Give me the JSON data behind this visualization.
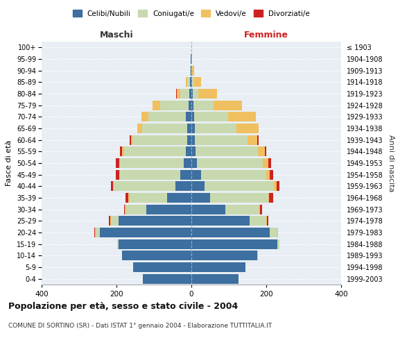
{
  "age_groups": [
    "0-4",
    "5-9",
    "10-14",
    "15-19",
    "20-24",
    "25-29",
    "30-34",
    "35-39",
    "40-44",
    "45-49",
    "50-54",
    "55-59",
    "60-64",
    "65-69",
    "70-74",
    "75-79",
    "80-84",
    "85-89",
    "90-94",
    "95-99",
    "100+"
  ],
  "birth_years": [
    "1999-2003",
    "1994-1998",
    "1989-1993",
    "1984-1988",
    "1979-1983",
    "1974-1978",
    "1969-1973",
    "1964-1968",
    "1959-1963",
    "1954-1958",
    "1949-1953",
    "1944-1948",
    "1939-1943",
    "1934-1938",
    "1929-1933",
    "1924-1928",
    "1919-1923",
    "1914-1918",
    "1909-1913",
    "1904-1908",
    "≤ 1903"
  ],
  "males": {
    "celibe": [
      130,
      155,
      185,
      195,
      245,
      195,
      120,
      65,
      42,
      30,
      20,
      15,
      12,
      12,
      14,
      8,
      5,
      3,
      1,
      1,
      0
    ],
    "coniugato": [
      0,
      0,
      1,
      3,
      10,
      20,
      55,
      100,
      165,
      160,
      170,
      165,
      145,
      120,
      100,
      75,
      25,
      8,
      2,
      0,
      0
    ],
    "vedovo": [
      0,
      0,
      0,
      0,
      2,
      2,
      2,
      3,
      3,
      3,
      3,
      5,
      5,
      12,
      20,
      20,
      8,
      3,
      1,
      0,
      0
    ],
    "divorziato": [
      0,
      0,
      0,
      0,
      2,
      3,
      3,
      8,
      5,
      8,
      8,
      5,
      3,
      0,
      0,
      0,
      2,
      0,
      0,
      0,
      0
    ]
  },
  "females": {
    "nubile": [
      125,
      145,
      175,
      230,
      210,
      155,
      90,
      50,
      35,
      25,
      15,
      12,
      10,
      10,
      8,
      5,
      3,
      2,
      0,
      0,
      0
    ],
    "coniugata": [
      0,
      0,
      2,
      5,
      20,
      45,
      90,
      155,
      185,
      175,
      175,
      165,
      140,
      110,
      90,
      55,
      15,
      5,
      2,
      0,
      0
    ],
    "vedova": [
      0,
      0,
      0,
      0,
      1,
      2,
      3,
      3,
      8,
      10,
      15,
      20,
      25,
      60,
      75,
      75,
      50,
      18,
      5,
      2,
      0
    ],
    "divorziata": [
      0,
      0,
      0,
      0,
      1,
      3,
      5,
      10,
      8,
      8,
      8,
      3,
      5,
      0,
      0,
      0,
      0,
      0,
      0,
      0,
      0
    ]
  },
  "colors": {
    "celibe": "#3d6fa0",
    "coniugato": "#c8d9b0",
    "vedovo": "#f0c060",
    "divorziato": "#cc2222"
  },
  "title": "Popolazione per età, sesso e stato civile - 2004",
  "subtitle": "COMUNE DI SORTINO (SR) - Dati ISTAT 1° gennaio 2004 - Elaborazione TUTTITALIA.IT",
  "xlabel_left": "Maschi",
  "xlabel_right": "Femmine",
  "ylabel_left": "Fasce di età",
  "ylabel_right": "Anni di nascita",
  "legend_labels": [
    "Celibi/Nubili",
    "Coniugati/e",
    "Vedovi/e",
    "Divorziati/e"
  ],
  "xlim": 400,
  "plot_bg_color": "#e8eef4",
  "background_color": "#ffffff",
  "bar_height": 0.85
}
